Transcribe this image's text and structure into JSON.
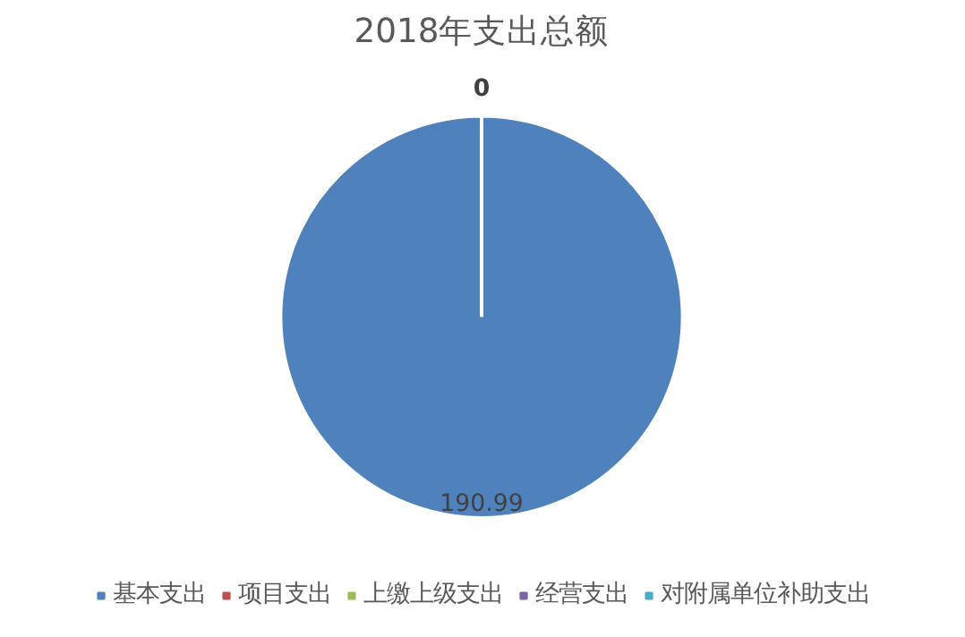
{
  "chart_data": {
    "type": "pie",
    "title": "2018年支出总额",
    "categories": [
      "基本支出",
      "项目支出",
      "上缴上级支出",
      "经营支出",
      "对附属单位补助支出"
    ],
    "values": [
      190.99,
      0,
      0,
      0,
      0
    ],
    "colors": [
      "#4f81bd",
      "#c0504d",
      "#9bbb59",
      "#8064a2",
      "#4bacc6"
    ],
    "value_labels": [
      "190.99",
      "0",
      null,
      null,
      null
    ],
    "legend": "bottom"
  }
}
